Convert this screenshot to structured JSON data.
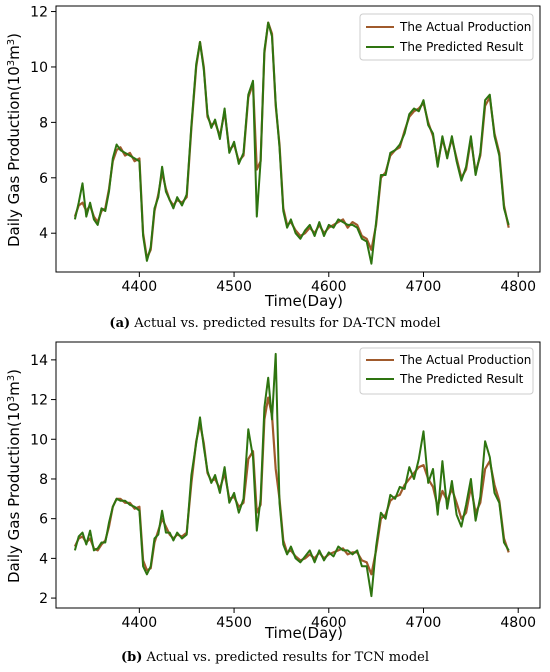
{
  "chart_data": [
    {
      "type": "line",
      "panel": "a",
      "xlabel": "Time(Day)",
      "ylabel": "Daily Gas Production(10",
      "ylabel_sup1": "3",
      "ylabel_mid": "m",
      "ylabel_sup2": "3",
      "ylabel_end": ")",
      "xlim": [
        4312,
        4823
      ],
      "ylim": [
        2.6,
        12.2
      ],
      "xticks": [
        4400,
        4500,
        4600,
        4700,
        4800
      ],
      "yticks": [
        4,
        6,
        8,
        10,
        12
      ],
      "legend_position": "top-right",
      "caption_label": "(a)",
      "caption_text": " Actual vs. predicted results for DA-TCN model",
      "series": [
        {
          "name": "The Actual Production",
          "color": "#a05a2c",
          "x": [
            4332,
            4336,
            4340,
            4344,
            4348,
            4352,
            4356,
            4360,
            4364,
            4368,
            4372,
            4376,
            4380,
            4385,
            4390,
            4395,
            4400,
            4404,
            4408,
            4412,
            4416,
            4420,
            4424,
            4428,
            4432,
            4436,
            4440,
            4445,
            4450,
            4455,
            4460,
            4464,
            4468,
            4472,
            4476,
            4480,
            4485,
            4490,
            4495,
            4500,
            4505,
            4510,
            4515,
            4520,
            4524,
            4528,
            4532,
            4536,
            4540,
            4544,
            4548,
            4552,
            4556,
            4560,
            4565,
            4570,
            4575,
            4580,
            4585,
            4590,
            4595,
            4600,
            4605,
            4610,
            4615,
            4620,
            4625,
            4630,
            4635,
            4640,
            4645,
            4650,
            4655,
            4660,
            4665,
            4670,
            4675,
            4680,
            4685,
            4690,
            4695,
            4700,
            4705,
            4710,
            4715,
            4720,
            4725,
            4730,
            4735,
            4740,
            4745,
            4750,
            4755,
            4760,
            4765,
            4770,
            4775,
            4780,
            4785,
            4790
          ],
          "y": [
            4.6,
            5.0,
            5.1,
            4.8,
            5.0,
            4.6,
            4.4,
            4.8,
            4.9,
            5.6,
            6.6,
            7.0,
            7.1,
            6.8,
            6.9,
            6.6,
            6.7,
            4.0,
            3.1,
            3.4,
            4.8,
            5.4,
            6.2,
            5.6,
            5.2,
            5.0,
            5.2,
            5.1,
            5.3,
            7.8,
            10.0,
            10.9,
            10.0,
            8.2,
            7.9,
            8.0,
            7.5,
            8.4,
            7.0,
            7.2,
            6.6,
            6.8,
            8.9,
            9.4,
            6.3,
            6.6,
            10.5,
            11.6,
            11.2,
            8.6,
            7.2,
            4.9,
            4.3,
            4.4,
            4.1,
            3.9,
            4.0,
            4.2,
            4.0,
            4.3,
            4.0,
            4.2,
            4.3,
            4.4,
            4.5,
            4.2,
            4.4,
            4.3,
            3.9,
            3.8,
            3.4,
            4.3,
            6.0,
            6.2,
            6.8,
            7.0,
            7.1,
            7.7,
            8.2,
            8.4,
            8.5,
            8.7,
            8.0,
            7.5,
            6.5,
            7.4,
            6.8,
            7.4,
            6.7,
            6.0,
            6.3,
            7.4,
            6.2,
            6.8,
            8.6,
            8.9,
            7.6,
            6.9,
            5.0,
            4.2
          ]
        },
        {
          "name": "The Predicted Result",
          "color": "#2e7410",
          "x": [
            4332,
            4336,
            4340,
            4344,
            4348,
            4352,
            4356,
            4360,
            4364,
            4368,
            4372,
            4376,
            4380,
            4385,
            4390,
            4395,
            4400,
            4404,
            4408,
            4412,
            4416,
            4420,
            4424,
            4428,
            4432,
            4436,
            4440,
            4445,
            4450,
            4455,
            4460,
            4464,
            4468,
            4472,
            4476,
            4480,
            4485,
            4490,
            4495,
            4500,
            4505,
            4510,
            4515,
            4520,
            4524,
            4528,
            4532,
            4536,
            4540,
            4544,
            4548,
            4552,
            4556,
            4560,
            4565,
            4570,
            4575,
            4580,
            4585,
            4590,
            4595,
            4600,
            4605,
            4610,
            4615,
            4620,
            4625,
            4630,
            4635,
            4640,
            4645,
            4650,
            4655,
            4660,
            4665,
            4670,
            4675,
            4680,
            4685,
            4690,
            4695,
            4700,
            4705,
            4710,
            4715,
            4720,
            4725,
            4730,
            4735,
            4740,
            4745,
            4750,
            4755,
            4760,
            4765,
            4770,
            4775,
            4780,
            4785,
            4790
          ],
          "y": [
            4.5,
            5.1,
            5.8,
            4.6,
            5.1,
            4.5,
            4.3,
            4.9,
            4.8,
            5.5,
            6.7,
            7.2,
            7.0,
            6.9,
            6.8,
            6.7,
            6.6,
            3.9,
            3.0,
            3.5,
            4.9,
            5.3,
            6.4,
            5.5,
            5.2,
            4.9,
            5.3,
            5.0,
            5.4,
            7.9,
            10.1,
            10.9,
            9.9,
            8.3,
            7.8,
            8.1,
            7.4,
            8.5,
            6.9,
            7.3,
            6.5,
            6.9,
            9.0,
            9.5,
            4.6,
            6.6,
            10.6,
            11.6,
            11.1,
            8.7,
            7.1,
            4.8,
            4.2,
            4.5,
            4.0,
            3.8,
            4.1,
            4.3,
            3.9,
            4.4,
            3.9,
            4.3,
            4.2,
            4.5,
            4.4,
            4.3,
            4.3,
            4.2,
            3.8,
            3.7,
            2.9,
            4.4,
            6.1,
            6.1,
            6.9,
            7.0,
            7.2,
            7.6,
            8.3,
            8.5,
            8.4,
            8.8,
            7.9,
            7.6,
            6.4,
            7.5,
            6.7,
            7.5,
            6.6,
            5.9,
            6.4,
            7.5,
            6.1,
            6.9,
            8.8,
            9.0,
            7.5,
            6.8,
            4.9,
            4.3
          ]
        }
      ]
    },
    {
      "type": "line",
      "panel": "b",
      "xlabel": "Time(Day)",
      "ylabel": "Daily Gas Production(10",
      "ylabel_sup1": "3",
      "ylabel_mid": "m",
      "ylabel_sup2": "3",
      "ylabel_end": ")",
      "xlim": [
        4312,
        4823
      ],
      "ylim": [
        1.5,
        14.9
      ],
      "xticks": [
        4400,
        4500,
        4600,
        4700,
        4800
      ],
      "yticks": [
        2,
        4,
        6,
        8,
        10,
        12,
        14
      ],
      "legend_position": "top-right",
      "caption_label": "(b)",
      "caption_text": " Actual vs. predicted results for TCN model",
      "series": [
        {
          "name": "The Actual Production",
          "color": "#a05a2c",
          "x": [
            4332,
            4336,
            4340,
            4344,
            4348,
            4352,
            4356,
            4360,
            4364,
            4368,
            4372,
            4376,
            4380,
            4385,
            4390,
            4395,
            4400,
            4404,
            4408,
            4412,
            4416,
            4420,
            4424,
            4428,
            4432,
            4436,
            4440,
            4445,
            4450,
            4455,
            4460,
            4464,
            4468,
            4472,
            4476,
            4480,
            4485,
            4490,
            4495,
            4500,
            4505,
            4510,
            4515,
            4520,
            4524,
            4528,
            4532,
            4536,
            4540,
            4544,
            4548,
            4552,
            4556,
            4560,
            4565,
            4570,
            4575,
            4580,
            4585,
            4590,
            4595,
            4600,
            4605,
            4610,
            4615,
            4620,
            4625,
            4630,
            4635,
            4640,
            4645,
            4650,
            4655,
            4660,
            4665,
            4670,
            4675,
            4680,
            4685,
            4690,
            4695,
            4700,
            4705,
            4710,
            4715,
            4720,
            4725,
            4730,
            4735,
            4740,
            4745,
            4750,
            4755,
            4760,
            4765,
            4770,
            4775,
            4780,
            4785,
            4790
          ],
          "y": [
            4.6,
            5.0,
            5.1,
            4.8,
            5.0,
            4.5,
            4.4,
            4.7,
            4.9,
            5.6,
            6.6,
            7.0,
            7.0,
            6.8,
            6.8,
            6.5,
            6.6,
            3.9,
            3.4,
            3.5,
            4.8,
            5.4,
            6.0,
            5.6,
            5.2,
            5.0,
            5.2,
            5.1,
            5.3,
            7.8,
            9.9,
            10.8,
            9.8,
            8.3,
            7.9,
            8.0,
            7.5,
            8.3,
            7.0,
            7.1,
            6.6,
            6.8,
            9.0,
            9.4,
            6.3,
            6.7,
            11.0,
            12.1,
            11.2,
            8.5,
            7.0,
            4.9,
            4.3,
            4.4,
            4.1,
            3.9,
            4.0,
            4.2,
            4.0,
            4.3,
            4.0,
            4.2,
            4.3,
            4.4,
            4.5,
            4.2,
            4.3,
            4.3,
            3.9,
            3.8,
            3.2,
            4.4,
            6.0,
            6.2,
            6.9,
            7.1,
            7.2,
            7.7,
            8.0,
            8.3,
            8.6,
            8.7,
            8.0,
            7.6,
            6.6,
            7.4,
            6.9,
            7.5,
            6.8,
            6.0,
            6.3,
            7.6,
            6.3,
            6.8,
            8.5,
            8.9,
            7.7,
            6.9,
            5.0,
            4.3
          ]
        },
        {
          "name": "The Predicted Result",
          "color": "#2e7410",
          "x": [
            4332,
            4336,
            4340,
            4344,
            4348,
            4352,
            4356,
            4360,
            4364,
            4368,
            4372,
            4376,
            4380,
            4385,
            4390,
            4395,
            4400,
            4404,
            4408,
            4412,
            4416,
            4420,
            4424,
            4428,
            4432,
            4436,
            4440,
            4445,
            4450,
            4455,
            4460,
            4464,
            4468,
            4472,
            4476,
            4480,
            4485,
            4490,
            4495,
            4500,
            4505,
            4510,
            4515,
            4520,
            4524,
            4528,
            4532,
            4536,
            4540,
            4544,
            4548,
            4552,
            4556,
            4560,
            4565,
            4570,
            4575,
            4580,
            4585,
            4590,
            4595,
            4600,
            4605,
            4610,
            4615,
            4620,
            4625,
            4630,
            4635,
            4640,
            4645,
            4650,
            4655,
            4660,
            4665,
            4670,
            4675,
            4680,
            4685,
            4690,
            4695,
            4700,
            4705,
            4710,
            4715,
            4720,
            4725,
            4730,
            4735,
            4740,
            4745,
            4750,
            4755,
            4760,
            4765,
            4770,
            4775,
            4780,
            4785,
            4790
          ],
          "y": [
            4.4,
            5.1,
            5.3,
            4.7,
            5.4,
            4.4,
            4.5,
            4.8,
            4.8,
            5.8,
            6.6,
            7.0,
            6.9,
            6.9,
            6.7,
            6.6,
            6.4,
            3.6,
            3.2,
            3.6,
            5.0,
            5.2,
            6.4,
            5.3,
            5.3,
            4.9,
            5.3,
            5.0,
            5.2,
            8.2,
            9.8,
            11.1,
            9.6,
            8.4,
            7.8,
            8.2,
            7.3,
            8.6,
            6.8,
            7.3,
            6.3,
            7.0,
            10.5,
            9.1,
            5.4,
            7.0,
            11.6,
            13.1,
            11.0,
            14.3,
            6.8,
            4.7,
            4.2,
            4.6,
            4.0,
            3.8,
            4.1,
            4.4,
            3.8,
            4.4,
            3.9,
            4.3,
            4.1,
            4.6,
            4.4,
            4.4,
            4.2,
            4.4,
            3.6,
            3.6,
            2.1,
            4.6,
            6.3,
            6.0,
            7.2,
            7.0,
            7.6,
            7.5,
            8.6,
            8.0,
            9.0,
            10.4,
            7.8,
            8.5,
            6.2,
            8.9,
            6.5,
            7.9,
            6.2,
            5.6,
            6.7,
            8.0,
            5.9,
            7.1,
            9.9,
            9.1,
            7.3,
            6.8,
            4.8,
            4.4
          ]
        }
      ]
    }
  ]
}
